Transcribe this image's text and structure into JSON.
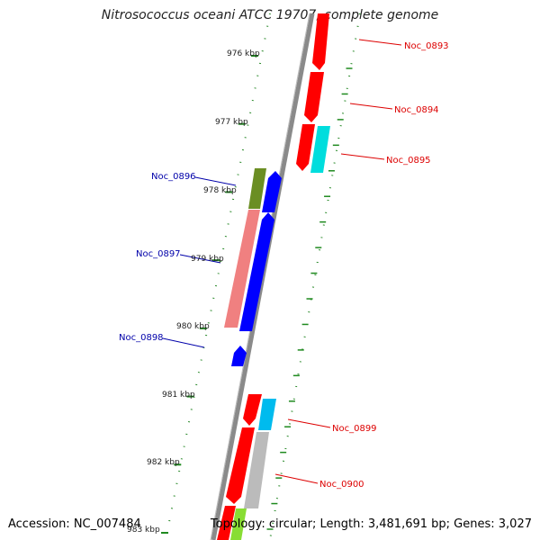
{
  "title": "Nitrosococcus oceani ATCC 19707, complete genome",
  "accession": "Accession: NC_007484",
  "summary": "Topology: circular; Length: 3,481,691 bp; Genes: 3,027",
  "ticks": [
    {
      "label": "976 kbp"
    },
    {
      "label": "977 kbp"
    },
    {
      "label": "978 kbp"
    },
    {
      "label": "979 kbp"
    },
    {
      "label": "980 kbp"
    },
    {
      "label": "981 kbp"
    },
    {
      "label": "982 kbp"
    },
    {
      "label": "983 kbp"
    }
  ],
  "genes": [
    {
      "name": "Noc_0893",
      "strand": "plus",
      "color": "#dd0000"
    },
    {
      "name": "Noc_0894",
      "strand": "plus",
      "color": "#dd0000"
    },
    {
      "name": "Noc_0895",
      "strand": "plus",
      "color": "#dd0000"
    },
    {
      "name": "Noc_0896",
      "strand": "minus",
      "color": "#0000aa"
    },
    {
      "name": "Noc_0897",
      "strand": "minus",
      "color": "#0000aa"
    },
    {
      "name": "Noc_0898",
      "strand": "minus",
      "color": "#0000aa"
    },
    {
      "name": "Noc_0899",
      "strand": "plus",
      "color": "#dd0000"
    },
    {
      "name": "Noc_0900",
      "strand": "plus",
      "color": "#dd0000"
    }
  ],
  "colors": {
    "backbone": "#888888",
    "forward_cds": "#ff0000",
    "reverse_cds": "#0000ff",
    "tick": "#1f8a1f",
    "gc_skew": "#2a8a2a"
  }
}
